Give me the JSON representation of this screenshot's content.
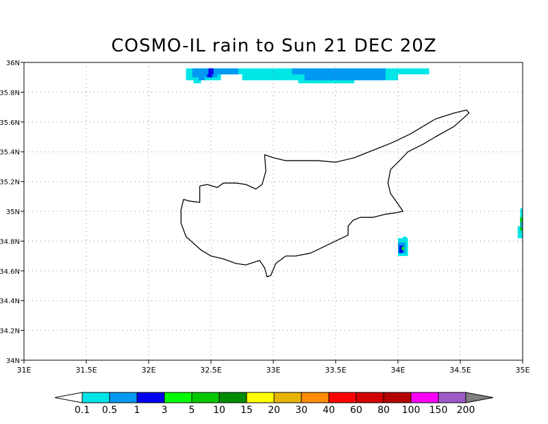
{
  "title": "COSMO-IL rain to Sun 21 DEC 20Z",
  "map": {
    "lon_range": [
      31,
      35
    ],
    "lat_range": [
      34,
      36
    ],
    "x_ticks": [
      {
        "v": 31,
        "label": "31E"
      },
      {
        "v": 31.5,
        "label": "31.5E"
      },
      {
        "v": 32,
        "label": "32E"
      },
      {
        "v": 32.5,
        "label": "32.5E"
      },
      {
        "v": 33,
        "label": "33E"
      },
      {
        "v": 33.5,
        "label": "33.5E"
      },
      {
        "v": 34,
        "label": "34E"
      },
      {
        "v": 34.5,
        "label": "34.5E"
      },
      {
        "v": 35,
        "label": "35E"
      }
    ],
    "y_ticks": [
      {
        "v": 34,
        "label": "34N"
      },
      {
        "v": 34.2,
        "label": "34.2N"
      },
      {
        "v": 34.4,
        "label": "34.4N"
      },
      {
        "v": 34.6,
        "label": "34.6N"
      },
      {
        "v": 34.8,
        "label": "34.8N"
      },
      {
        "v": 35,
        "label": "35N"
      },
      {
        "v": 35.2,
        "label": "35.2N"
      },
      {
        "v": 35.4,
        "label": "35.4N"
      },
      {
        "v": 35.6,
        "label": "35.6N"
      },
      {
        "v": 35.8,
        "label": "35.8N"
      },
      {
        "v": 36,
        "label": "36N"
      }
    ],
    "grid": true,
    "grid_style": "dotted"
  },
  "coastline_cyprus": [
    [
      32.41,
      35.17
    ],
    [
      32.47,
      35.18
    ],
    [
      32.55,
      35.16
    ],
    [
      32.6,
      35.19
    ],
    [
      32.7,
      35.19
    ],
    [
      32.78,
      35.18
    ],
    [
      32.86,
      35.15
    ],
    [
      32.91,
      35.18
    ],
    [
      32.94,
      35.27
    ],
    [
      32.93,
      35.38
    ],
    [
      33.0,
      35.36
    ],
    [
      33.1,
      35.34
    ],
    [
      33.2,
      35.34
    ],
    [
      33.36,
      35.34
    ],
    [
      33.5,
      35.33
    ],
    [
      33.65,
      35.36
    ],
    [
      33.8,
      35.41
    ],
    [
      33.95,
      35.46
    ],
    [
      34.1,
      35.52
    ],
    [
      34.2,
      35.57
    ],
    [
      34.3,
      35.62
    ],
    [
      34.45,
      35.66
    ],
    [
      34.55,
      35.68
    ],
    [
      34.57,
      35.66
    ],
    [
      34.45,
      35.57
    ],
    [
      34.3,
      35.5
    ],
    [
      34.2,
      35.45
    ],
    [
      34.08,
      35.4
    ],
    [
      34.0,
      35.33
    ],
    [
      33.94,
      35.28
    ],
    [
      33.92,
      35.19
    ],
    [
      33.94,
      35.12
    ],
    [
      34.0,
      35.05
    ],
    [
      34.04,
      35.0
    ],
    [
      33.98,
      34.99
    ],
    [
      33.9,
      34.98
    ],
    [
      33.8,
      34.96
    ],
    [
      33.7,
      34.96
    ],
    [
      33.64,
      34.94
    ],
    [
      33.6,
      34.9
    ],
    [
      33.6,
      34.84
    ],
    [
      33.45,
      34.78
    ],
    [
      33.3,
      34.72
    ],
    [
      33.18,
      34.7
    ],
    [
      33.1,
      34.7
    ],
    [
      33.02,
      34.65
    ],
    [
      32.98,
      34.57
    ],
    [
      32.95,
      34.56
    ],
    [
      32.93,
      34.62
    ],
    [
      32.89,
      34.67
    ],
    [
      32.78,
      34.64
    ],
    [
      32.7,
      34.65
    ],
    [
      32.6,
      34.68
    ],
    [
      32.5,
      34.7
    ],
    [
      32.42,
      34.74
    ],
    [
      32.3,
      34.83
    ],
    [
      32.26,
      34.92
    ],
    [
      32.26,
      35.01
    ],
    [
      32.28,
      35.08
    ],
    [
      32.32,
      35.07
    ],
    [
      32.41,
      35.06
    ],
    [
      32.41,
      35.17
    ]
  ],
  "rain_cells": [
    {
      "bounds": [
        32.3,
        35.92,
        32.75,
        35.96
      ],
      "bin": 0
    },
    {
      "bounds": [
        32.3,
        35.88,
        32.58,
        35.92
      ],
      "bin": 0
    },
    {
      "bounds": [
        32.36,
        35.86,
        32.42,
        35.88
      ],
      "bin": 0
    },
    {
      "bounds": [
        32.75,
        35.88,
        33.35,
        35.96
      ],
      "bin": 0
    },
    {
      "bounds": [
        33.35,
        35.88,
        33.95,
        35.96
      ],
      "bin": 0
    },
    {
      "bounds": [
        33.95,
        35.92,
        34.25,
        35.96
      ],
      "bin": 0
    },
    {
      "bounds": [
        33.95,
        35.88,
        34.0,
        35.92
      ],
      "bin": 0
    },
    {
      "bounds": [
        33.2,
        35.86,
        33.65,
        35.88
      ],
      "bin": 0
    },
    {
      "bounds": [
        32.35,
        35.9,
        32.55,
        35.96
      ],
      "bin": 1
    },
    {
      "bounds": [
        32.55,
        35.92,
        32.72,
        35.96
      ],
      "bin": 1
    },
    {
      "bounds": [
        32.4,
        35.88,
        32.45,
        35.9
      ],
      "bin": 1
    },
    {
      "bounds": [
        33.15,
        35.92,
        33.9,
        35.96
      ],
      "bin": 1
    },
    {
      "bounds": [
        33.25,
        35.88,
        33.9,
        35.92
      ],
      "bin": 1
    },
    {
      "bounds": [
        32.48,
        35.92,
        32.52,
        35.96
      ],
      "bin": 2
    },
    {
      "bounds": [
        32.47,
        35.9,
        32.51,
        35.92
      ],
      "bin": 2
    },
    {
      "bounds": [
        34.0,
        34.7,
        34.08,
        34.82
      ],
      "bin": 0
    },
    {
      "bounds": [
        34.04,
        34.8,
        34.07,
        34.83
      ],
      "bin": 0
    },
    {
      "bounds": [
        34.0,
        34.72,
        34.06,
        34.79
      ],
      "bin": 1
    },
    {
      "bounds": [
        34.01,
        34.72,
        34.04,
        34.77
      ],
      "bin": 2
    },
    {
      "bounds": [
        34.03,
        34.74,
        34.05,
        34.76
      ],
      "bin": 3
    },
    {
      "bounds": [
        34.96,
        34.82,
        35.0,
        34.9
      ],
      "bin": 0
    },
    {
      "bounds": [
        34.98,
        34.88,
        35.0,
        35.02
      ],
      "bin": 0
    },
    {
      "bounds": [
        34.98,
        34.87,
        35.0,
        34.96
      ],
      "bin": 4
    },
    {
      "bounds": [
        34.985,
        34.89,
        35.0,
        34.93
      ],
      "bin": 1
    }
  ],
  "colorbar": {
    "lower_extend_color": "#ffffff",
    "upper_extend_color": "#808080",
    "colors": [
      "#00e6e6",
      "#0099f2",
      "#0000f0",
      "#00ff00",
      "#00c800",
      "#008c00",
      "#ffff00",
      "#e6b400",
      "#ff8c00",
      "#ff0000",
      "#d20000",
      "#b40000",
      "#ff00ff",
      "#a05ac8"
    ],
    "labels": [
      "0.1",
      "0.5",
      "1",
      "3",
      "5",
      "10",
      "15",
      "20",
      "30",
      "40",
      "60",
      "80",
      "100",
      "150",
      "200"
    ]
  }
}
